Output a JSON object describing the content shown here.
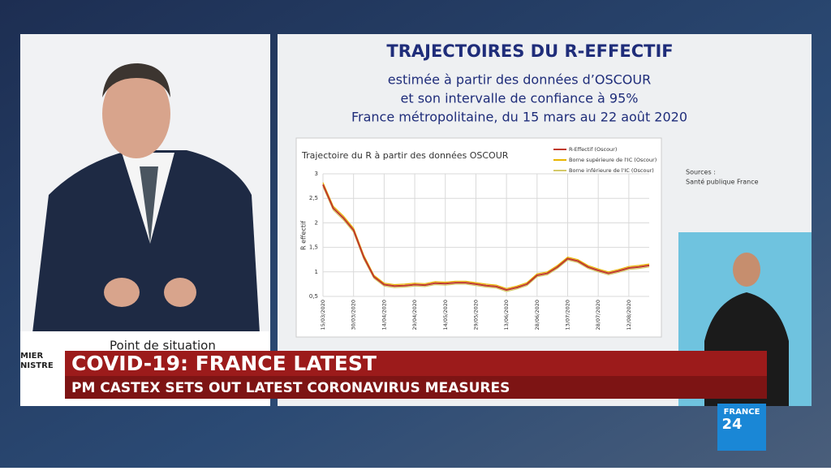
{
  "slide": {
    "title": "TRAJECTOIRES DU R-EFFECTIF",
    "subtitle_lines": [
      "estimée à partir des données d’OSCOUR",
      "et son intervalle de confiance à 95%",
      "France métropolitaine, du 15 mars au 22 août 2020"
    ],
    "source_label": "Sources :",
    "source": "Santé publique France"
  },
  "chart_data": {
    "type": "line",
    "title": "Trajectoire du R à partir des données OSCOUR",
    "y_label": "R effectif",
    "categories": [
      "15/03/2020",
      null,
      null,
      "30/03/2020",
      null,
      null,
      "14/04/2020",
      null,
      null,
      "29/04/2020",
      null,
      null,
      "14/05/2020",
      null,
      null,
      "29/05/2020",
      null,
      null,
      "13/06/2020",
      null,
      null,
      "28/06/2020",
      null,
      null,
      "13/07/2020",
      null,
      null,
      "28/07/2020",
      null,
      null,
      "12/08/2020",
      null,
      null
    ],
    "ylim": [
      0.5,
      3
    ],
    "yticks": [
      {
        "value": 0.5,
        "label": "0,5"
      },
      1,
      {
        "value": 1.5,
        "label": "1,5"
      },
      2,
      {
        "value": 2.5,
        "label": "2,5"
      },
      3
    ],
    "grid": true,
    "series": [
      {
        "name": "R-Effectif (Oscour)",
        "color": "#c0392b",
        "values": [
          2.78,
          2.3,
          2.1,
          1.85,
          1.3,
          0.9,
          0.74,
          0.71,
          0.72,
          0.74,
          0.73,
          0.77,
          0.76,
          0.78,
          0.78,
          0.75,
          0.72,
          0.7,
          0.63,
          0.68,
          0.75,
          0.93,
          0.97,
          1.1,
          1.27,
          1.22,
          1.1,
          1.03,
          0.97,
          1.02,
          1.08,
          1.1,
          1.13
        ]
      },
      {
        "name": "Borne supérieure de l'IC (Oscour)",
        "color": "#e8b400",
        "values": [
          2.82,
          2.34,
          2.14,
          1.89,
          1.34,
          0.93,
          0.77,
          0.74,
          0.75,
          0.77,
          0.76,
          0.8,
          0.79,
          0.81,
          0.81,
          0.78,
          0.75,
          0.73,
          0.66,
          0.71,
          0.78,
          0.96,
          1.0,
          1.13,
          1.3,
          1.25,
          1.13,
          1.06,
          1.0,
          1.05,
          1.11,
          1.13,
          1.16
        ]
      },
      {
        "name": "Borne inférieure de l'IC (Oscour)",
        "color": "#d4c96a",
        "values": [
          2.74,
          2.26,
          2.06,
          1.81,
          1.26,
          0.87,
          0.71,
          0.68,
          0.69,
          0.71,
          0.7,
          0.74,
          0.73,
          0.75,
          0.75,
          0.72,
          0.69,
          0.67,
          0.6,
          0.65,
          0.72,
          0.9,
          0.94,
          1.07,
          1.24,
          1.19,
          1.07,
          1.0,
          0.94,
          0.99,
          1.05,
          1.07,
          1.1
        ]
      }
    ]
  },
  "podium": {
    "label": "Point de situation",
    "logo_lines": [
      "MIER",
      "NISTRE"
    ]
  },
  "lower_third": {
    "headline": "COVID-19: FRANCE LATEST",
    "subline": "PM CASTEX SETS OUT LATEST CORONAVIRUS MEASURES"
  },
  "channel_logo": {
    "name": "FRANCE",
    "number": "24"
  }
}
